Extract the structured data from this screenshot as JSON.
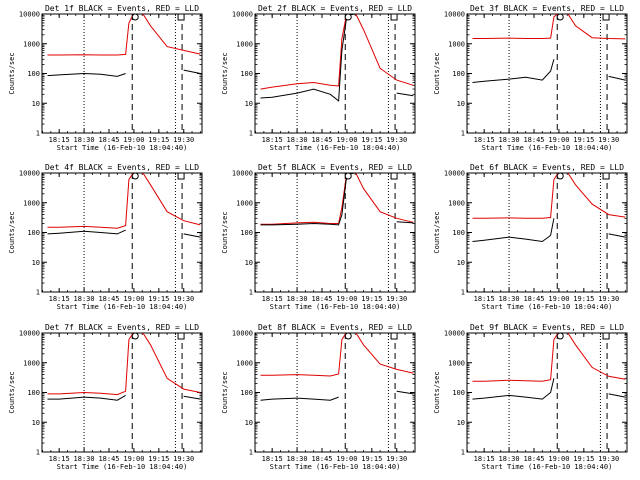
{
  "figure": {
    "x_label": "Start Time (16-Feb-10 18:04:40)",
    "y_label": "Counts/sec",
    "x_tick_labels": [
      "18:15",
      "18:30",
      "18:45",
      "19:00",
      "19:15",
      "19:30"
    ],
    "y_tick_labels": [
      "1",
      "10",
      "100",
      "1000",
      "10000"
    ],
    "colors": {
      "events": "#000000",
      "lld": "#e00000",
      "frame": "#000000",
      "background": "#ffffff"
    }
  },
  "chart_data": [
    {
      "type": "line",
      "title": "Det 1f BLACK = Events, RED = LLD",
      "xlabel": "Start Time (16-Feb-10 18:04:40)",
      "ylabel": "Counts/sec",
      "y_scale": "log",
      "ylim": [
        1,
        10000
      ],
      "xlim": [
        "18:04:40",
        "19:41"
      ],
      "grid": false,
      "x": [
        "18:08",
        "18:15",
        "18:30",
        "18:40",
        "18:50",
        "18:55",
        "18:57",
        "19:00",
        "19:05",
        "19:10",
        "19:20",
        "19:30",
        "19:40"
      ],
      "series": [
        {
          "name": "BLACK = Events",
          "values": [
            85,
            90,
            100,
            95,
            80,
            100,
            null,
            null,
            null,
            null,
            null,
            130,
            100
          ]
        },
        {
          "name": "RED = LLD",
          "values": [
            420,
            420,
            430,
            420,
            420,
            440,
            5000,
            11000,
            11000,
            4000,
            800,
            600,
            450
          ]
        }
      ],
      "vlines_dotted": [
        "18:30",
        "19:25"
      ],
      "vlines_dashed": [
        "18:59",
        "19:29"
      ]
    },
    {
      "type": "line",
      "title": "Det 2f BLACK = Events, RED = LLD",
      "xlabel": "Start Time (16-Feb-10 18:04:40)",
      "ylabel": "Counts/sec",
      "y_scale": "log",
      "ylim": [
        1,
        10000
      ],
      "xlim": [
        "18:04:40",
        "19:41"
      ],
      "grid": false,
      "x": [
        "18:08",
        "18:15",
        "18:30",
        "18:40",
        "18:50",
        "18:55",
        "18:57",
        "19:00",
        "19:05",
        "19:10",
        "19:20",
        "19:30",
        "19:40"
      ],
      "series": [
        {
          "name": "BLACK = Events",
          "values": [
            15,
            16,
            22,
            30,
            20,
            12,
            600,
            9000,
            10000,
            null,
            null,
            22,
            18
          ]
        },
        {
          "name": "RED = LLD",
          "values": [
            30,
            35,
            45,
            50,
            40,
            38,
            1500,
            11000,
            11000,
            3000,
            150,
            60,
            40
          ]
        }
      ],
      "vlines_dotted": [
        "18:30",
        "19:25"
      ],
      "vlines_dashed": [
        "18:59",
        "19:29"
      ]
    },
    {
      "type": "line",
      "title": "Det 3f BLACK = Events, RED = LLD",
      "xlabel": "Start Time (16-Feb-10 18:04:40)",
      "ylabel": "Counts/sec",
      "y_scale": "log",
      "ylim": [
        1,
        10000
      ],
      "xlim": [
        "18:04:40",
        "19:41"
      ],
      "grid": false,
      "x": [
        "18:08",
        "18:15",
        "18:30",
        "18:40",
        "18:50",
        "18:55",
        "18:57",
        "19:00",
        "19:05",
        "19:10",
        "19:20",
        "19:30",
        "19:40"
      ],
      "series": [
        {
          "name": "BLACK = Events",
          "values": [
            50,
            55,
            65,
            75,
            60,
            120,
            300,
            null,
            null,
            null,
            null,
            80,
            60
          ]
        },
        {
          "name": "RED = LLD",
          "values": [
            1500,
            1500,
            1550,
            1500,
            1500,
            1550,
            8000,
            11000,
            11000,
            4000,
            1600,
            1500,
            1450
          ]
        }
      ],
      "vlines_dotted": [
        "18:30",
        "19:25"
      ],
      "vlines_dashed": [
        "18:59",
        "19:29"
      ]
    },
    {
      "type": "line",
      "title": "Det 4f BLACK = Events, RED = LLD",
      "xlabel": "Start Time (16-Feb-10 18:04:40)",
      "ylabel": "Counts/sec",
      "y_scale": "log",
      "ylim": [
        1,
        10000
      ],
      "xlim": [
        "18:04:40",
        "19:41"
      ],
      "grid": false,
      "x": [
        "18:08",
        "18:15",
        "18:30",
        "18:40",
        "18:50",
        "18:55",
        "18:57",
        "19:00",
        "19:05",
        "19:10",
        "19:20",
        "19:30",
        "19:40"
      ],
      "series": [
        {
          "name": "BLACK = Events",
          "values": [
            90,
            95,
            110,
            100,
            90,
            120,
            null,
            null,
            null,
            null,
            null,
            90,
            70
          ]
        },
        {
          "name": "RED = LLD",
          "values": [
            150,
            150,
            160,
            150,
            140,
            170,
            6000,
            11000,
            11000,
            4000,
            500,
            250,
            180
          ]
        }
      ],
      "vlines_dotted": [
        "18:30",
        "19:25"
      ],
      "vlines_dashed": [
        "18:59",
        "19:29"
      ]
    },
    {
      "type": "line",
      "title": "Det 5f BLACK = Events, RED = LLD",
      "xlabel": "Start Time (16-Feb-10 18:04:40)",
      "ylabel": "Counts/sec",
      "y_scale": "log",
      "ylim": [
        1,
        10000
      ],
      "xlim": [
        "18:04:40",
        "19:41"
      ],
      "grid": false,
      "x": [
        "18:08",
        "18:15",
        "18:30",
        "18:40",
        "18:50",
        "18:55",
        "18:57",
        "19:00",
        "19:05",
        "19:10",
        "19:20",
        "19:30",
        "19:40"
      ],
      "series": [
        {
          "name": "BLACK = Events",
          "values": [
            180,
            180,
            190,
            200,
            190,
            180,
            400,
            9000,
            10000,
            null,
            null,
            230,
            210
          ]
        },
        {
          "name": "RED = LLD",
          "values": [
            190,
            190,
            210,
            220,
            200,
            200,
            700,
            11000,
            11000,
            3000,
            500,
            300,
            220
          ]
        }
      ],
      "vlines_dotted": [
        "18:30",
        "19:25"
      ],
      "vlines_dashed": [
        "18:59",
        "19:29"
      ]
    },
    {
      "type": "line",
      "title": "Det 6f BLACK = Events, RED = LLD",
      "xlabel": "Start Time (16-Feb-10 18:04:40)",
      "ylabel": "Counts/sec",
      "y_scale": "log",
      "ylim": [
        1,
        10000
      ],
      "xlim": [
        "18:04:40",
        "19:41"
      ],
      "grid": false,
      "x": [
        "18:08",
        "18:15",
        "18:30",
        "18:40",
        "18:50",
        "18:55",
        "18:57",
        "19:00",
        "19:05",
        "19:10",
        "19:20",
        "19:30",
        "19:40"
      ],
      "series": [
        {
          "name": "BLACK = Events",
          "values": [
            50,
            55,
            70,
            60,
            50,
            80,
            300,
            null,
            null,
            null,
            null,
            90,
            70
          ]
        },
        {
          "name": "RED = LLD",
          "values": [
            300,
            300,
            310,
            300,
            300,
            320,
            6000,
            11000,
            11000,
            4000,
            900,
            400,
            330
          ]
        }
      ],
      "vlines_dotted": [
        "18:30",
        "19:25"
      ],
      "vlines_dashed": [
        "18:59",
        "19:29"
      ]
    },
    {
      "type": "line",
      "title": "Det 7f BLACK = Events, RED = LLD",
      "xlabel": "Start Time (16-Feb-10 18:04:40)",
      "ylabel": "Counts/sec",
      "y_scale": "log",
      "ylim": [
        1,
        10000
      ],
      "xlim": [
        "18:04:40",
        "19:41"
      ],
      "grid": false,
      "x": [
        "18:08",
        "18:15",
        "18:30",
        "18:40",
        "18:50",
        "18:55",
        "18:57",
        "19:00",
        "19:05",
        "19:10",
        "19:20",
        "19:30",
        "19:40"
      ],
      "series": [
        {
          "name": "BLACK = Events",
          "values": [
            60,
            60,
            70,
            65,
            55,
            80,
            null,
            null,
            null,
            null,
            null,
            75,
            60
          ]
        },
        {
          "name": "RED = LLD",
          "values": [
            90,
            90,
            100,
            95,
            85,
            110,
            6000,
            11000,
            11000,
            4000,
            300,
            130,
            100
          ]
        }
      ],
      "vlines_dotted": [
        "18:30",
        "19:25"
      ],
      "vlines_dashed": [
        "18:59",
        "19:29"
      ]
    },
    {
      "type": "line",
      "title": "Det 8f BLACK = Events, RED = LLD",
      "xlabel": "Start Time (16-Feb-10 18:04:40)",
      "ylabel": "Counts/sec",
      "y_scale": "log",
      "ylim": [
        1,
        10000
      ],
      "xlim": [
        "18:04:40",
        "19:41"
      ],
      "grid": false,
      "x": [
        "18:08",
        "18:15",
        "18:30",
        "18:40",
        "18:50",
        "18:55",
        "18:57",
        "19:00",
        "19:05",
        "19:10",
        "19:20",
        "19:30",
        "19:40"
      ],
      "series": [
        {
          "name": "BLACK = Events",
          "values": [
            55,
            60,
            65,
            60,
            55,
            70,
            null,
            null,
            null,
            null,
            null,
            110,
            90
          ]
        },
        {
          "name": "RED = LLD",
          "values": [
            380,
            380,
            400,
            380,
            360,
            420,
            6000,
            11000,
            11000,
            4000,
            900,
            600,
            450
          ]
        }
      ],
      "vlines_dotted": [
        "18:30",
        "19:25"
      ],
      "vlines_dashed": [
        "18:59",
        "19:29"
      ]
    },
    {
      "type": "line",
      "title": "Det 9f BLACK = Events, RED = LLD",
      "xlabel": "Start Time (16-Feb-10 18:04:40)",
      "ylabel": "Counts/sec",
      "y_scale": "log",
      "ylim": [
        1,
        10000
      ],
      "xlim": [
        "18:04:40",
        "19:41"
      ],
      "grid": false,
      "x": [
        "18:08",
        "18:15",
        "18:30",
        "18:40",
        "18:50",
        "18:55",
        "18:57",
        "19:00",
        "19:05",
        "19:10",
        "19:20",
        "19:30",
        "19:40"
      ],
      "series": [
        {
          "name": "BLACK = Events",
          "values": [
            60,
            65,
            80,
            70,
            60,
            100,
            300,
            null,
            null,
            null,
            null,
            90,
            70
          ]
        },
        {
          "name": "RED = LLD",
          "values": [
            240,
            240,
            260,
            250,
            240,
            270,
            6000,
            11000,
            11000,
            4000,
            700,
            350,
            280
          ]
        }
      ],
      "vlines_dotted": [
        "18:30",
        "19:25"
      ],
      "vlines_dashed": [
        "18:59",
        "19:29"
      ]
    }
  ]
}
